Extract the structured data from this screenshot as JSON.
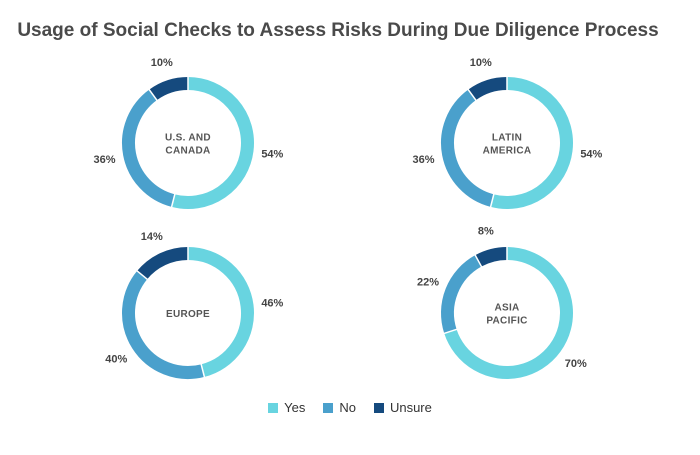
{
  "chart_data": {
    "type": "donut",
    "title": "Usage of Social Checks to Assess Risks During Due Diligence Process",
    "legend": {
      "placement": "bottom",
      "entries": [
        {
          "name": "Yes",
          "color": "#68d4e0"
        },
        {
          "name": "No",
          "color": "#4aa0cc"
        },
        {
          "name": "Unsure",
          "color": "#154a7e"
        }
      ]
    },
    "charts": [
      {
        "region": [
          "U.S. AND",
          "CANADA"
        ],
        "values": [
          54,
          36,
          10
        ],
        "labels": [
          "54%",
          "36%",
          "10%"
        ]
      },
      {
        "region": [
          "LATIN",
          "AMERICA"
        ],
        "values": [
          54,
          36,
          10
        ],
        "labels": [
          "54%",
          "36%",
          "10%"
        ]
      },
      {
        "region": [
          "EUROPE"
        ],
        "values": [
          46,
          40,
          14
        ],
        "labels": [
          "46%",
          "40%",
          "14%"
        ]
      },
      {
        "region": [
          "ASIA",
          "PACIFIC"
        ],
        "values": [
          70,
          22,
          8
        ],
        "labels": [
          "70%",
          "22%",
          "8%"
        ]
      }
    ]
  }
}
